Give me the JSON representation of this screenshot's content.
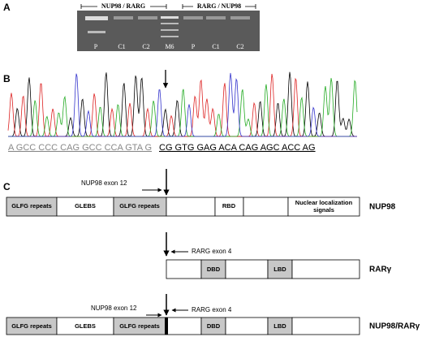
{
  "panel_a": {
    "label": "A",
    "groups": [
      "NUP98 / RARG",
      "RARG / NUP98"
    ],
    "lanes": [
      "P",
      "C1",
      "C2",
      "M6",
      "P",
      "C1",
      "C2"
    ]
  },
  "panel_b": {
    "label": "B",
    "sequence_left": "A GCC CCC CAG GCC CCA GTA G",
    "sequence_right": "CG GTG GAG ACA CAG AGC ACC AG"
  },
  "panel_c": {
    "label": "C",
    "nup98": {
      "name": "NUP98",
      "annotation": "NUP98 exon 12",
      "domains": [
        "GLFG repeats",
        "GLEBS",
        "GLFG repeats",
        "RBD",
        "Nuclear localization signals"
      ]
    },
    "rarg": {
      "name": "RARγ",
      "annotation": "RARG exon 4",
      "domains": [
        "DBD",
        "LBD"
      ]
    },
    "fusion": {
      "name": "NUP98/RARγ",
      "annotations": [
        "NUP98 exon 12",
        "RARG exon 4"
      ],
      "domains": [
        "GLFG repeats",
        "GLEBS",
        "GLFG repeats",
        "DBD",
        "LBD"
      ]
    }
  }
}
